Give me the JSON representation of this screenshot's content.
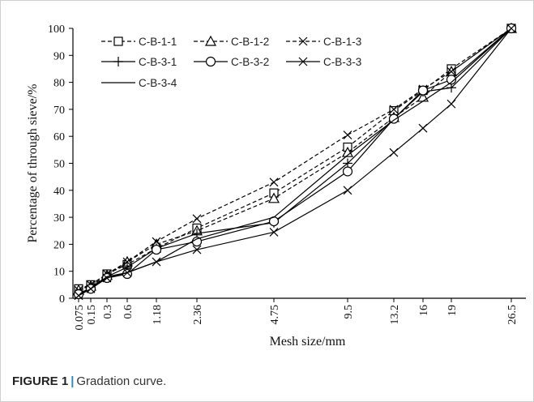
{
  "figure": {
    "label": "FIGURE 1",
    "separator": "|",
    "caption": "Gradation curve."
  },
  "chart_data": {
    "type": "line",
    "xlabel": "Mesh size/mm",
    "ylabel": "Percentage of through sieve/%",
    "ylim": [
      0,
      100
    ],
    "yticks": [
      0,
      10,
      20,
      30,
      40,
      50,
      60,
      70,
      80,
      90,
      100
    ],
    "categories": [
      "0.075",
      "0.15",
      "0.3",
      "0.6",
      "1.18",
      "2.36",
      "4.75",
      "9.5",
      "13.2",
      "16",
      "19",
      "26.5"
    ],
    "grid": false,
    "legend_position": "top-left",
    "series": [
      {
        "name": "C-B-1-1",
        "marker": "square",
        "dash": true,
        "values": [
          3.5,
          5,
          9,
          12.5,
          18.5,
          26,
          39,
          56,
          69.5,
          77,
          85,
          100
        ]
      },
      {
        "name": "C-B-1-2",
        "marker": "triangle",
        "dash": true,
        "values": [
          3,
          4.5,
          8.5,
          13.5,
          20,
          25,
          37,
          54,
          67,
          74.5,
          84,
          100
        ]
      },
      {
        "name": "C-B-1-3",
        "marker": "x",
        "dash": true,
        "values": [
          3,
          5,
          9,
          13.5,
          21,
          29.5,
          43,
          60.5,
          70,
          77.5,
          84,
          100
        ]
      },
      {
        "name": "C-B-3-1",
        "marker": "plus",
        "dash": false,
        "values": [
          1.5,
          4,
          8,
          11.5,
          18.5,
          24,
          28,
          50,
          66.5,
          76.5,
          78,
          100
        ]
      },
      {
        "name": "C-B-3-2",
        "marker": "circle",
        "dash": false,
        "values": [
          1.5,
          3.5,
          7.5,
          9,
          18,
          21,
          28.5,
          47,
          66.5,
          77,
          81,
          100
        ]
      },
      {
        "name": "C-B-3-3",
        "marker": "x",
        "dash": false,
        "values": [
          1,
          3.5,
          7.5,
          9.5,
          13.5,
          18,
          24.5,
          40,
          54,
          63,
          72,
          100
        ]
      },
      {
        "name": "C-B-3-4",
        "marker": "none",
        "dash": false,
        "values": [
          1,
          3.5,
          8,
          9.5,
          13.5,
          22,
          30,
          53,
          66,
          73,
          80,
          100
        ]
      }
    ]
  }
}
